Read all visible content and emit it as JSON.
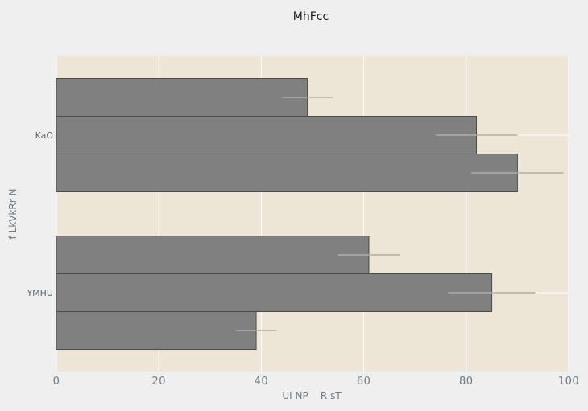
{
  "chart_data": {
    "type": "bar",
    "orientation": "horizontal",
    "title": "MhFcc",
    "xlabel": "UI NP    R sT",
    "ylabel": "f LkVkRr N",
    "categories": [
      "KaO",
      "YMHU"
    ],
    "series": [
      {
        "values": [
          49,
          61
        ],
        "errors": [
          5,
          6
        ]
      },
      {
        "values": [
          82,
          85
        ],
        "errors": [
          8,
          8.5
        ]
      },
      {
        "values": [
          90,
          39
        ],
        "errors": [
          9,
          4
        ]
      }
    ],
    "xlim": [
      0,
      100
    ],
    "xticks": [
      "0",
      "20",
      "40",
      "60",
      "80",
      "100"
    ],
    "grid": true,
    "bar_color": "#808080",
    "error_color": "#b0ada4",
    "plot_background": "#ede6d7",
    "page_background": "#efefef",
    "grid_color": "#ffffff"
  }
}
